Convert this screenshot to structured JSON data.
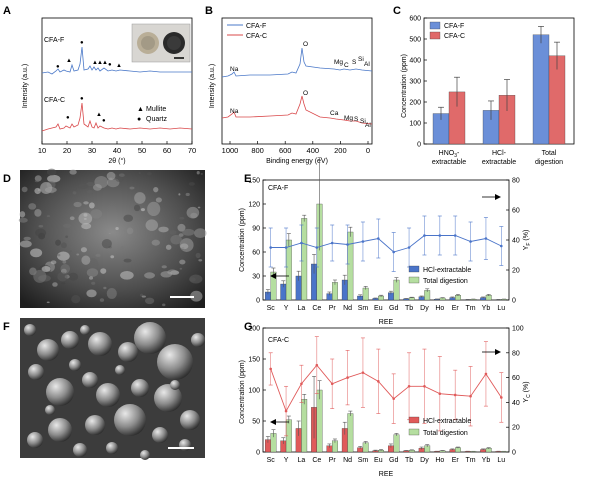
{
  "panel_letters": [
    "A",
    "B",
    "C",
    "D",
    "E",
    "F",
    "G"
  ],
  "chart_data": [
    {
      "panel": "A",
      "type": "line",
      "xlabel": "2θ (°)",
      "ylabel": "Intensity (a.u.)",
      "xlim": [
        10,
        70
      ],
      "xticks": [
        "10",
        "20",
        "30",
        "40",
        "50",
        "60",
        "70"
      ],
      "series": [
        {
          "name": "CFA-F",
          "color": "#4a78c8"
        },
        {
          "name": "CFA-C",
          "color": "#d9484a"
        }
      ],
      "legend": [
        {
          "symbol": "▲",
          "label": "Mullite"
        },
        {
          "symbol": "●",
          "label": "Quartz"
        }
      ]
    },
    {
      "panel": "B",
      "type": "line",
      "xlabel": "Binding energy (eV)",
      "ylabel": "Intensity (a.u.)",
      "xlim": [
        1100,
        0
      ],
      "xticks": [
        "1000",
        "800",
        "600",
        "400",
        "200",
        "0"
      ],
      "legend_position": "top-left",
      "series": [
        {
          "name": "CFA-F",
          "color": "#4a78c8",
          "peaks": [
            "Na",
            "O",
            "Mg",
            "C",
            "S",
            "Si",
            "Al"
          ]
        },
        {
          "name": "CFA-C",
          "color": "#d9484a",
          "peaks": [
            "Na",
            "O",
            "Ca",
            "Mg",
            "S",
            "Si",
            "Al"
          ]
        }
      ]
    },
    {
      "panel": "C",
      "type": "bar",
      "ylabel": "Concentration (ppm)",
      "ylim": [
        0,
        600
      ],
      "yticks": [
        "0",
        "100",
        "200",
        "300",
        "400",
        "500",
        "600"
      ],
      "categories": [
        "HNO3-extractable",
        "HCl-extractable",
        "Total digestion"
      ],
      "category_labels": [
        [
          "HNO",
          "3",
          "-",
          " extractable"
        ],
        [
          "HCl-",
          "",
          "",
          "",
          " extractable"
        ],
        [
          "Total",
          "",
          "",
          "",
          " digestion"
        ]
      ],
      "legend_position": "top-left",
      "series": [
        {
          "name": "CFA-F",
          "color": "#6b8fd8",
          "values": [
            145,
            160,
            520
          ],
          "errors": [
            30,
            45,
            40
          ]
        },
        {
          "name": "CFA-C",
          "color": "#e06a6a",
          "values": [
            248,
            232,
            420
          ],
          "errors": [
            70,
            75,
            65
          ]
        }
      ]
    },
    {
      "panel": "E",
      "type": "bar",
      "title": "CFA-F",
      "xlabel": "REE",
      "ylabel": "Concentration (ppm)",
      "y2label": "Y_F (%)",
      "ylim": [
        0,
        150
      ],
      "yticks": [
        "0",
        "30",
        "60",
        "90",
        "120",
        "150"
      ],
      "y2lim": [
        0,
        80
      ],
      "y2ticks": [
        "0",
        "20",
        "40",
        "60",
        "80"
      ],
      "categories": [
        "Sc",
        "Y",
        "La",
        "Ce",
        "Pr",
        "Nd",
        "Sm",
        "Eu",
        "Gd",
        "Tb",
        "Dy",
        "Ho",
        "Er",
        "Tm",
        "Yb",
        "Lu"
      ],
      "legend_position": "right",
      "series": [
        {
          "name": "HCl-extractable",
          "color": "#4a74c9",
          "values": [
            10,
            20,
            30,
            45,
            8,
            25,
            5,
            2,
            9,
            1.5,
            4,
            1,
            3,
            0.5,
            3,
            0.5
          ],
          "errors": [
            3,
            4,
            6,
            12,
            2,
            6,
            1.5,
            0.5,
            2,
            0.4,
            1,
            0.3,
            0.8,
            0.2,
            0.8,
            0.2
          ]
        },
        {
          "name": "Total digestion",
          "color": "#b5dea0",
          "values": [
            35,
            75,
            102,
            120,
            22,
            85,
            15,
            5,
            25,
            3,
            12,
            2.5,
            6,
            1,
            6,
            1
          ],
          "errors": [
            5,
            8,
            4,
            58,
            3,
            6,
            2,
            1,
            3,
            0.5,
            2,
            0.5,
            1,
            0.2,
            1,
            0.2
          ]
        },
        {
          "name": "Y_F",
          "type": "line",
          "axis": "right",
          "color": "#4a74c9",
          "values": [
            35,
            35,
            38,
            35,
            38,
            37,
            39,
            41,
            32,
            35,
            43,
            43,
            43,
            39,
            41,
            36
          ],
          "errors": [
            13,
            13,
            12,
            13,
            12,
            13,
            13,
            13,
            13,
            13,
            13,
            13,
            13,
            13,
            14,
            13
          ]
        }
      ]
    },
    {
      "panel": "G",
      "type": "bar",
      "title": "CFA-C",
      "xlabel": "REE",
      "ylabel": "Concentration (ppm)",
      "y2label": "Y_C (%)",
      "ylim": [
        0,
        200
      ],
      "yticks": [
        "0",
        "50",
        "100",
        "150",
        "200"
      ],
      "y2lim": [
        0,
        100
      ],
      "y2ticks": [
        "0",
        "20",
        "40",
        "60",
        "80",
        "100"
      ],
      "categories": [
        "Sc",
        "Y",
        "La",
        "Ce",
        "Pr",
        "Nd",
        "Sm",
        "Eu",
        "Gd",
        "Tb",
        "Dy",
        "Ho",
        "Er",
        "Tm",
        "Yb",
        "Lu"
      ],
      "legend_position": "right",
      "series": [
        {
          "name": "HCl-extractable",
          "color": "#e05a5a",
          "values": [
            20,
            18,
            38,
            72,
            10,
            38,
            7,
            2,
            10,
            2,
            6,
            1,
            4,
            1,
            4,
            1
          ],
          "errors": [
            5,
            5,
            12,
            50,
            3,
            10,
            2,
            1,
            3,
            0.5,
            2,
            0.3,
            1,
            0.3,
            1,
            0.3
          ]
        },
        {
          "name": "Total digestion",
          "color": "#b5dea0",
          "values": [
            30,
            52,
            85,
            100,
            18,
            62,
            15,
            3,
            28,
            3,
            10,
            2,
            7,
            1,
            6,
            1
          ],
          "errors": [
            6,
            6,
            8,
            15,
            3,
            4,
            2,
            1,
            2,
            0.5,
            2,
            0.5,
            1,
            0.2,
            1,
            0.2
          ]
        },
        {
          "name": "Y_C",
          "type": "line",
          "axis": "right",
          "color": "#e05a5a",
          "values": [
            67,
            33,
            55,
            70,
            55,
            60,
            64,
            57,
            43,
            53,
            53,
            47,
            46,
            45,
            63,
            44
          ],
          "errors": [
            13,
            20,
            15,
            23,
            20,
            22,
            28,
            26,
            20,
            27,
            30,
            30,
            20,
            24,
            26,
            20
          ]
        }
      ]
    }
  ]
}
